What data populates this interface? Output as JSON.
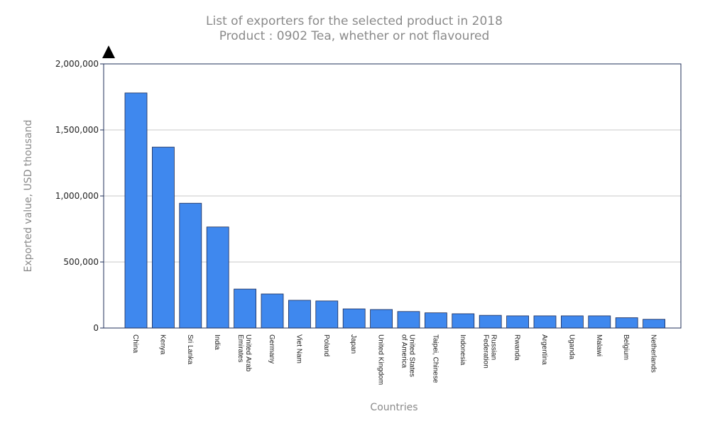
{
  "chart_data": {
    "type": "bar",
    "title": "List of exporters for the selected product in 2018",
    "subtitle": "Product : 0902 Tea, whether or not flavoured",
    "xlabel": "Countries",
    "ylabel": "Exported value, USD thousand",
    "ylim": [
      0,
      2000000
    ],
    "yticks": [
      0,
      500000,
      1000000,
      1500000,
      2000000
    ],
    "ytick_labels": [
      "0",
      "500,000",
      "1,000,000",
      "1,500,000",
      "2,000,000"
    ],
    "grid": true,
    "bar_color": "#3f88ee",
    "categories": [
      [
        "China"
      ],
      [
        "Kenya"
      ],
      [
        "Sri Lanka"
      ],
      [
        "India"
      ],
      [
        "United Arab",
        "Emirates"
      ],
      [
        "Germany"
      ],
      [
        "Viet Nam"
      ],
      [
        "Poland"
      ],
      [
        "Japan"
      ],
      [
        "United Kingdom"
      ],
      [
        "United States",
        "of America"
      ],
      [
        "Taipei, Chinese"
      ],
      [
        "Indonesia"
      ],
      [
        "Russian",
        "Federation"
      ],
      [
        "Rwanda"
      ],
      [
        "Argentina"
      ],
      [
        "Uganda"
      ],
      [
        "Malawi"
      ],
      [
        "Belgium"
      ],
      [
        "Netherlands"
      ]
    ],
    "values": [
      1780000,
      1370000,
      945000,
      765000,
      295000,
      258000,
      210000,
      205000,
      145000,
      140000,
      125000,
      115000,
      108000,
      96000,
      92000,
      92000,
      92000,
      92000,
      78000,
      66000
    ]
  }
}
